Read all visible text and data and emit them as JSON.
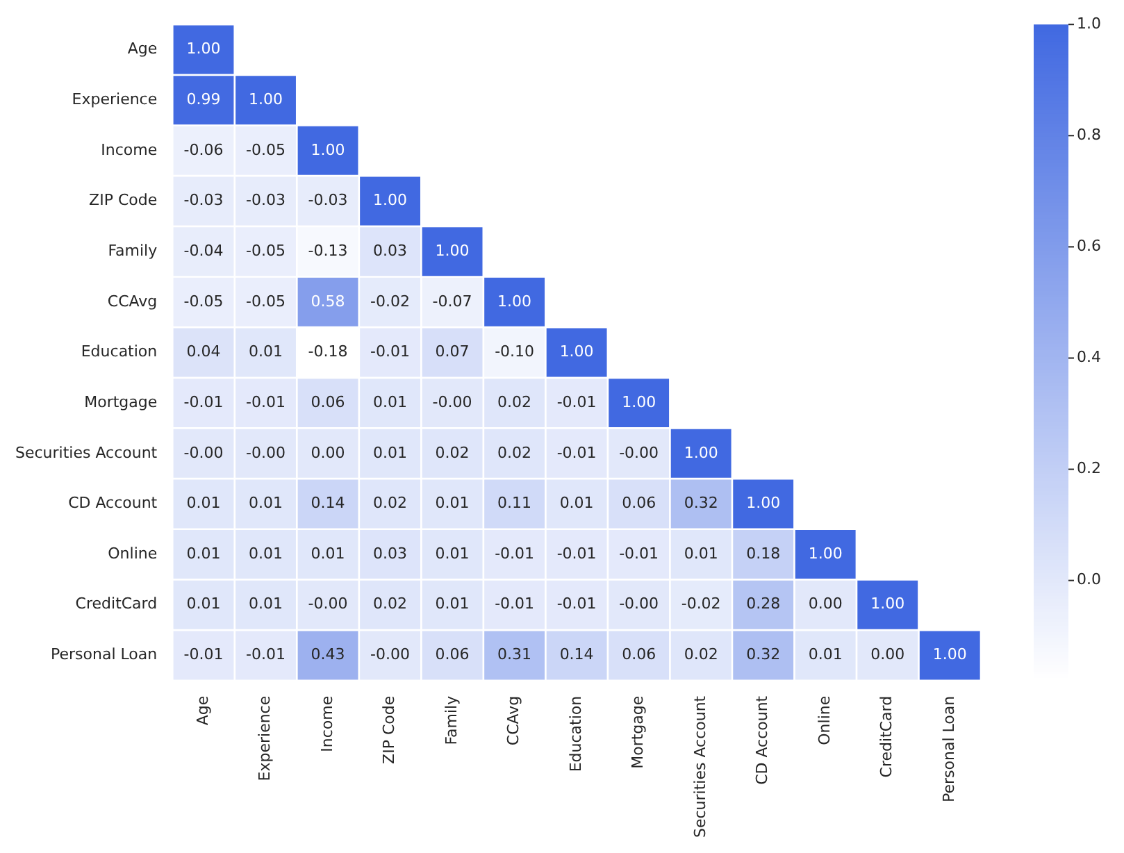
{
  "chart_data": {
    "type": "heatmap",
    "categories": [
      "Age",
      "Experience",
      "Income",
      "ZIP Code",
      "Family",
      "CCAvg",
      "Education",
      "Mortgage",
      "Securities Account",
      "CD Account",
      "Online",
      "CreditCard",
      "Personal Loan"
    ],
    "y_categories": [
      "Age",
      "Experience",
      "Income",
      "ZIP Code",
      "Family",
      "CCAvg",
      "Education",
      "Mortgage",
      "Securities Account",
      "CD Account",
      "Online",
      "CreditCard",
      "Personal Loan"
    ],
    "cells": [
      [
        1.0,
        null,
        null,
        null,
        null,
        null,
        null,
        null,
        null,
        null,
        null,
        null,
        null
      ],
      [
        0.99,
        1.0,
        null,
        null,
        null,
        null,
        null,
        null,
        null,
        null,
        null,
        null,
        null
      ],
      [
        -0.06,
        -0.05,
        1.0,
        null,
        null,
        null,
        null,
        null,
        null,
        null,
        null,
        null,
        null
      ],
      [
        -0.03,
        -0.03,
        -0.03,
        1.0,
        null,
        null,
        null,
        null,
        null,
        null,
        null,
        null,
        null
      ],
      [
        -0.04,
        -0.05,
        -0.13,
        0.03,
        1.0,
        null,
        null,
        null,
        null,
        null,
        null,
        null,
        null
      ],
      [
        -0.05,
        -0.05,
        0.58,
        -0.02,
        -0.07,
        1.0,
        null,
        null,
        null,
        null,
        null,
        null,
        null
      ],
      [
        0.04,
        0.01,
        -0.18,
        -0.01,
        0.07,
        -0.1,
        1.0,
        null,
        null,
        null,
        null,
        null,
        null
      ],
      [
        -0.01,
        -0.01,
        0.06,
        0.01,
        0.0,
        0.02,
        -0.01,
        1.0,
        null,
        null,
        null,
        null,
        null
      ],
      [
        0.0,
        0.0,
        0.0,
        0.01,
        0.02,
        0.02,
        -0.01,
        0.0,
        1.0,
        null,
        null,
        null,
        null
      ],
      [
        0.01,
        0.01,
        0.14,
        0.02,
        0.01,
        0.11,
        0.01,
        0.06,
        0.32,
        1.0,
        null,
        null,
        null
      ],
      [
        0.01,
        0.01,
        0.01,
        0.03,
        0.01,
        -0.01,
        -0.01,
        -0.01,
        0.01,
        0.18,
        1.0,
        null,
        null
      ],
      [
        0.01,
        0.01,
        0.0,
        0.02,
        0.01,
        -0.01,
        -0.01,
        0.0,
        -0.02,
        0.28,
        0.0,
        1.0,
        null
      ],
      [
        -0.01,
        -0.01,
        0.43,
        0.0,
        0.06,
        0.31,
        0.14,
        0.06,
        0.02,
        0.32,
        0.01,
        0.0,
        1.0
      ]
    ],
    "cell_labels": [
      [
        "1.00",
        null,
        null,
        null,
        null,
        null,
        null,
        null,
        null,
        null,
        null,
        null,
        null
      ],
      [
        "0.99",
        "1.00",
        null,
        null,
        null,
        null,
        null,
        null,
        null,
        null,
        null,
        null,
        null
      ],
      [
        "-0.06",
        "-0.05",
        "1.00",
        null,
        null,
        null,
        null,
        null,
        null,
        null,
        null,
        null,
        null
      ],
      [
        "-0.03",
        "-0.03",
        "-0.03",
        "1.00",
        null,
        null,
        null,
        null,
        null,
        null,
        null,
        null,
        null
      ],
      [
        "-0.04",
        "-0.05",
        "-0.13",
        "0.03",
        "1.00",
        null,
        null,
        null,
        null,
        null,
        null,
        null,
        null
      ],
      [
        "-0.05",
        "-0.05",
        "0.58",
        "-0.02",
        "-0.07",
        "1.00",
        null,
        null,
        null,
        null,
        null,
        null,
        null
      ],
      [
        "0.04",
        "0.01",
        "-0.18",
        "-0.01",
        "0.07",
        "-0.10",
        "1.00",
        null,
        null,
        null,
        null,
        null,
        null
      ],
      [
        "-0.01",
        "-0.01",
        "0.06",
        "0.01",
        "-0.00",
        "0.02",
        "-0.01",
        "1.00",
        null,
        null,
        null,
        null,
        null
      ],
      [
        "-0.00",
        "-0.00",
        "0.00",
        "0.01",
        "0.02",
        "0.02",
        "-0.01",
        "-0.00",
        "1.00",
        null,
        null,
        null,
        null
      ],
      [
        "0.01",
        "0.01",
        "0.14",
        "0.02",
        "0.01",
        "0.11",
        "0.01",
        "0.06",
        "0.32",
        "1.00",
        null,
        null,
        null
      ],
      [
        "0.01",
        "0.01",
        "0.01",
        "0.03",
        "0.01",
        "-0.01",
        "-0.01",
        "-0.01",
        "0.01",
        "0.18",
        "1.00",
        null,
        null
      ],
      [
        "0.01",
        "0.01",
        "-0.00",
        "0.02",
        "0.01",
        "-0.01",
        "-0.01",
        "-0.00",
        "-0.02",
        "0.28",
        "0.00",
        "1.00",
        null
      ],
      [
        "-0.01",
        "-0.01",
        "0.43",
        "-0.00",
        "0.06",
        "0.31",
        "0.14",
        "0.06",
        "0.02",
        "0.32",
        "0.01",
        "0.00",
        "1.00"
      ]
    ],
    "clim": [
      -0.18,
      1.0
    ],
    "cticks": [
      {
        "value": 0,
        "label": "0.0"
      },
      {
        "value": 0.2,
        "label": "0.2"
      },
      {
        "value": 0.4,
        "label": "0.4"
      },
      {
        "value": 0.6,
        "label": "0.6"
      },
      {
        "value": 0.8,
        "label": "0.8"
      },
      {
        "value": 1.0,
        "label": "1.0"
      }
    ]
  }
}
